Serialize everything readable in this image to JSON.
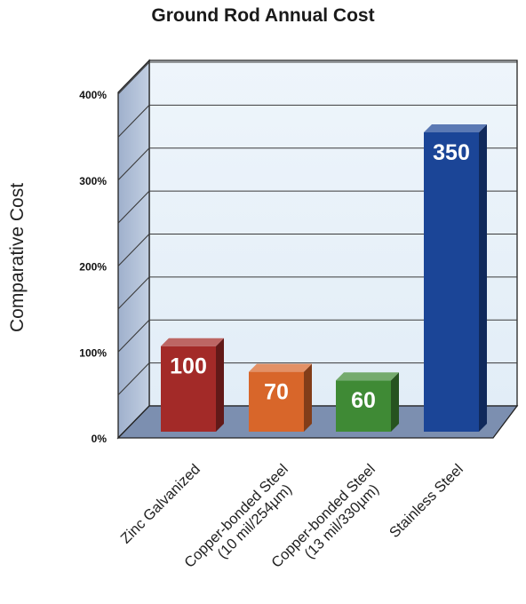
{
  "chart_data": {
    "type": "bar",
    "title": "Ground Rod Annual Cost",
    "ylabel": "Comparative Cost",
    "xlabel": "",
    "ylim": [
      0,
      400
    ],
    "yticks": [
      {
        "value": 0,
        "label": "0%"
      },
      {
        "value": 100,
        "label": "100%"
      },
      {
        "value": 200,
        "label": "200%"
      },
      {
        "value": 300,
        "label": "300%"
      },
      {
        "value": 400,
        "label": "400%"
      }
    ],
    "categories": [
      [
        "Zinc Galvanized"
      ],
      [
        "Copper-bonded Steel",
        "(10 mil/254µm)"
      ],
      [
        "Copper-bonded Steel",
        "(13 mil/330µm)"
      ],
      [
        "Stainless Steel"
      ]
    ],
    "values": [
      100,
      70,
      60,
      350
    ],
    "data_labels": [
      "100",
      "70",
      "60",
      "350"
    ],
    "bar_colors": [
      "#a32a28",
      "#d8662a",
      "#3f8a35",
      "#1b4597"
    ],
    "grid": true,
    "style": "3d"
  }
}
